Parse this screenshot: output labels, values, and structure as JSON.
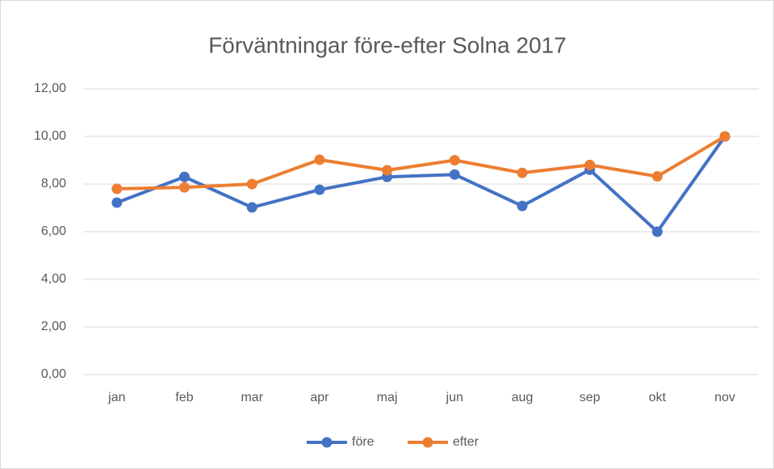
{
  "chart_data": {
    "type": "line",
    "title": "Förväntningar före-efter Solna 2017",
    "categories": [
      "jan",
      "feb",
      "mar",
      "apr",
      "maj",
      "jun",
      "aug",
      "sep",
      "okt",
      "nov"
    ],
    "series": [
      {
        "name": "före",
        "color": "#4472c4",
        "values": [
          7.22,
          8.3,
          7.02,
          7.76,
          8.3,
          8.4,
          7.08,
          8.6,
          6.0,
          10.0
        ]
      },
      {
        "name": "efter",
        "color": "#ed7d31",
        "values": [
          7.8,
          7.86,
          8.0,
          9.02,
          8.58,
          9.0,
          8.47,
          8.8,
          8.32,
          10.0
        ]
      }
    ],
    "ylim": [
      0,
      12
    ],
    "yticks": [
      {
        "value": 0,
        "label": "0,00"
      },
      {
        "value": 2,
        "label": "2,00"
      },
      {
        "value": 4,
        "label": "4,00"
      },
      {
        "value": 6,
        "label": "6,00"
      },
      {
        "value": 8,
        "label": "8,00"
      },
      {
        "value": 10,
        "label": "10,00"
      },
      {
        "value": 12,
        "label": "12,00"
      }
    ],
    "grid": true,
    "legend": "bottom"
  }
}
